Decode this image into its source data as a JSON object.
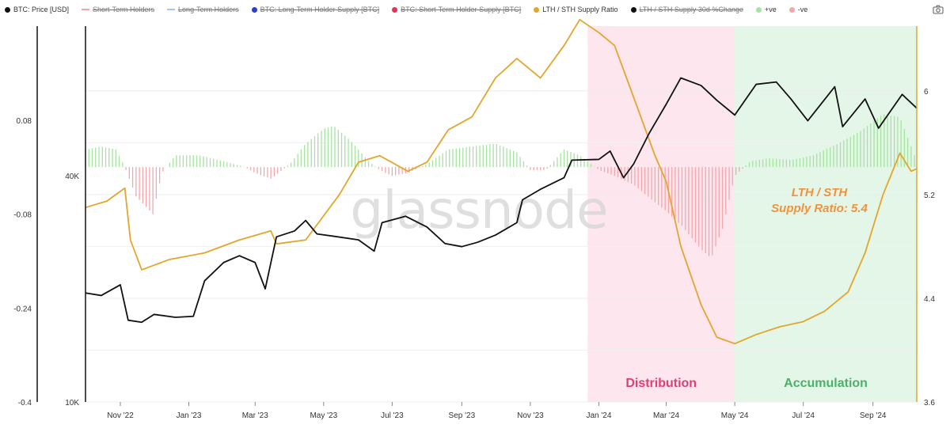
{
  "legend": [
    {
      "label": "BTC: Price [USD]",
      "color": "#111111",
      "shape": "dot",
      "disabled": false
    },
    {
      "label": "Short-Term Holders",
      "color": "#f4a3a8",
      "shape": "line",
      "disabled": true
    },
    {
      "label": "Long-Term Holders",
      "color": "#a8c4f0",
      "shape": "line",
      "disabled": true
    },
    {
      "label": "BTC: Long-Term Holder Supply [BTC]",
      "color": "#2a3fcf",
      "shape": "dot",
      "disabled": true
    },
    {
      "label": "BTC: Short-Term Holder Supply [BTC]",
      "color": "#e0335a",
      "shape": "dot",
      "disabled": true
    },
    {
      "label": "LTH / STH Supply Ratio",
      "color": "#e3a62c",
      "shape": "dot",
      "disabled": false
    },
    {
      "label": "LTH / STH Supply 30d %Change",
      "color": "#111111",
      "shape": "dot",
      "disabled": true
    },
    {
      "label": "+ve",
      "color": "#a6e3a1",
      "shape": "dot",
      "disabled": false
    },
    {
      "label": "-ve",
      "color": "#f3a6ac",
      "shape": "dot",
      "disabled": false
    }
  ],
  "icons": {
    "screenshot": "camera-icon"
  },
  "watermark": "glassnode",
  "annotation": {
    "line1": "LTH / STH",
    "line2": "Supply Ratio: 5.4"
  },
  "regions": [
    {
      "label": "Distribution",
      "start": "Dec 22 2023",
      "end": "May 1 2024",
      "fill": "#fde6ee",
      "text_color": "#e23e74"
    },
    {
      "label": "Accumulation",
      "start": "May 1 2024",
      "end": "Oct 10 2024",
      "fill": "#e4f6e8",
      "text_color": "#4cb06a"
    }
  ],
  "chart_data": {
    "type": "line",
    "x_range": [
      "Oct 1 2022",
      "Oct 10 2024"
    ],
    "x_ticks": [
      "Nov '22",
      "Jan '23",
      "Mar '23",
      "May '23",
      "Jul '23",
      "Sep '23",
      "Nov '23",
      "Jan '24",
      "Mar '24",
      "May '24",
      "Jul '24",
      "Sep '24"
    ],
    "axes": {
      "change_axis": {
        "side": "left-outer",
        "ticks": [
          "0.08",
          "-0.08",
          "-0.24",
          "-0.4"
        ],
        "range": [
          -0.4,
          0.24
        ]
      },
      "price_axis": {
        "side": "left-inner",
        "scale": "log",
        "ticks": [
          "40K",
          "10K"
        ],
        "range": [
          10000,
          100000
        ]
      },
      "ratio_axis": {
        "side": "right",
        "ticks": [
          "6",
          "5.2",
          "4.4",
          "3.6"
        ],
        "range": [
          3.6,
          6.5
        ]
      }
    },
    "series": [
      {
        "name": "BTC: Price [USD]",
        "color": "#111111",
        "axis": "price_axis",
        "points": [
          [
            "Oct 1 2022",
            19500
          ],
          [
            "Oct 15 2022",
            19200
          ],
          [
            "Nov 1 2022",
            20500
          ],
          [
            "Nov 8 2022",
            16500
          ],
          [
            "Nov 20 2022",
            16300
          ],
          [
            "Dec 1 2022",
            17100
          ],
          [
            "Dec 20 2022",
            16800
          ],
          [
            "Jan 5 2023",
            16900
          ],
          [
            "Jan 15 2023",
            21000
          ],
          [
            "Feb 1 2023",
            23500
          ],
          [
            "Feb 15 2023",
            24500
          ],
          [
            "Mar 1 2023",
            23500
          ],
          [
            "Mar 10 2023",
            20000
          ],
          [
            "Mar 20 2023",
            27500
          ],
          [
            "Apr 5 2023",
            28500
          ],
          [
            "Apr 15 2023",
            30400
          ],
          [
            "Apr 25 2023",
            28000
          ],
          [
            "May 10 2023",
            27600
          ],
          [
            "Jun 1 2023",
            27000
          ],
          [
            "Jun 15 2023",
            25200
          ],
          [
            "Jun 22 2023",
            30000
          ],
          [
            "Jul 13 2023",
            31200
          ],
          [
            "Aug 1 2023",
            29200
          ],
          [
            "Aug 17 2023",
            26400
          ],
          [
            "Sep 1 2023",
            25900
          ],
          [
            "Sep 15 2023",
            26600
          ],
          [
            "Oct 1 2023",
            27800
          ],
          [
            "Oct 20 2023",
            30000
          ],
          [
            "Oct 25 2023",
            34500
          ],
          [
            "Nov 10 2023",
            36800
          ],
          [
            "Dec 1 2023",
            39500
          ],
          [
            "Dec 8 2023",
            44000
          ],
          [
            "Jan 1 2024",
            44200
          ],
          [
            "Jan 11 2024",
            46500
          ],
          [
            "Jan 23 2024",
            39500
          ],
          [
            "Feb 1 2024",
            43000
          ],
          [
            "Feb 15 2024",
            52000
          ],
          [
            "Mar 1 2024",
            62000
          ],
          [
            "Mar 14 2024",
            72800
          ],
          [
            "Apr 1 2024",
            69500
          ],
          [
            "Apr 15 2024",
            63500
          ],
          [
            "May 1 2024",
            58000
          ],
          [
            "May 20 2024",
            70000
          ],
          [
            "Jun 7 2024",
            71000
          ],
          [
            "Jun 20 2024",
            64000
          ],
          [
            "Jul 5 2024",
            56000
          ],
          [
            "Jul 29 2024",
            69000
          ],
          [
            "Aug 5 2024",
            54000
          ],
          [
            "Aug 25 2024",
            64000
          ],
          [
            "Sep 6 2024",
            53500
          ],
          [
            "Sep 27 2024",
            65800
          ],
          [
            "Oct 10 2024",
            60500
          ]
        ]
      },
      {
        "name": "LTH / STH Supply Ratio",
        "color": "#e3a62c",
        "axis": "ratio_axis",
        "points": [
          [
            "Oct 1 2022",
            5.1
          ],
          [
            "Oct 20 2022",
            5.15
          ],
          [
            "Nov 5 2022",
            5.25
          ],
          [
            "Nov 10 2022",
            4.85
          ],
          [
            "Nov 20 2022",
            4.62
          ],
          [
            "Dec 15 2022",
            4.7
          ],
          [
            "Jan 15 2023",
            4.75
          ],
          [
            "Feb 15 2023",
            4.85
          ],
          [
            "Mar 15 2023",
            4.92
          ],
          [
            "Mar 20 2023",
            4.82
          ],
          [
            "Apr 15 2023",
            4.85
          ],
          [
            "May 15 2023",
            5.2
          ],
          [
            "Jun 1 2023",
            5.45
          ],
          [
            "Jun 20 2023",
            5.5
          ],
          [
            "Jul 15 2023",
            5.38
          ],
          [
            "Aug 1 2023",
            5.45
          ],
          [
            "Aug 20 2023",
            5.7
          ],
          [
            "Sep 10 2023",
            5.8
          ],
          [
            "Oct 1 2023",
            6.1
          ],
          [
            "Oct 20 2023",
            6.25
          ],
          [
            "Nov 10 2023",
            6.1
          ],
          [
            "Dec 1 2023",
            6.35
          ],
          [
            "Dec 15 2023",
            6.55
          ],
          [
            "Jan 1 2024",
            6.45
          ],
          [
            "Jan 15 2024",
            6.35
          ],
          [
            "Feb 1 2024",
            5.95
          ],
          [
            "Feb 20 2024",
            5.5
          ],
          [
            "Mar 1 2024",
            5.3
          ],
          [
            "Mar 14 2024",
            4.8
          ],
          [
            "Apr 1 2024",
            4.35
          ],
          [
            "Apr 15 2024",
            4.1
          ],
          [
            "May 1 2024",
            4.05
          ],
          [
            "May 20 2024",
            4.12
          ],
          [
            "Jun 10 2024",
            4.18
          ],
          [
            "Jul 1 2024",
            4.22
          ],
          [
            "Jul 20 2024",
            4.3
          ],
          [
            "Aug 10 2024",
            4.45
          ],
          [
            "Aug 25 2024",
            4.75
          ],
          [
            "Sep 10 2024",
            5.2
          ],
          [
            "Sep 25 2024",
            5.52
          ],
          [
            "Oct 5 2024",
            5.38
          ],
          [
            "Oct 10 2024",
            5.4
          ]
        ]
      },
      {
        "name": "LTH / STH Supply 30d %Change",
        "color_positive": "#a6e3a1",
        "color_negative": "#f3a6ac",
        "axis": "change_axis",
        "bar_points": [
          [
            "Oct 1 2022",
            0.03
          ],
          [
            "Oct 15 2022",
            0.035
          ],
          [
            "Oct 28 2022",
            0.03
          ],
          [
            "Nov 5 2022",
            0.0
          ],
          [
            "Nov 15 2022",
            -0.05
          ],
          [
            "Nov 30 2022",
            -0.08
          ],
          [
            "Dec 8 2022",
            -0.01
          ],
          [
            "Dec 20 2022",
            0.02
          ],
          [
            "Jan 10 2023",
            0.02
          ],
          [
            "Feb 1 2023",
            0.01
          ],
          [
            "Feb 20 2023",
            0.0
          ],
          [
            "Mar 1 2023",
            -0.01
          ],
          [
            "Mar 15 2023",
            -0.02
          ],
          [
            "Apr 1 2023",
            0.005
          ],
          [
            "Apr 15 2023",
            0.04
          ],
          [
            "May 1 2023",
            0.065
          ],
          [
            "May 10 2023",
            0.07
          ],
          [
            "May 25 2023",
            0.045
          ],
          [
            "Jun 10 2023",
            0.01
          ],
          [
            "Jun 20 2023",
            -0.005
          ],
          [
            "Jul 1 2023",
            -0.015
          ],
          [
            "Jul 15 2023",
            -0.01
          ],
          [
            "Aug 1 2023",
            0.005
          ],
          [
            "Aug 20 2023",
            0.03
          ],
          [
            "Sep 10 2023",
            0.035
          ],
          [
            "Oct 1 2023",
            0.04
          ],
          [
            "Oct 20 2023",
            0.025
          ],
          [
            "Nov 1 2023",
            -0.005
          ],
          [
            "Nov 15 2023",
            -0.005
          ],
          [
            "Dec 1 2023",
            0.03
          ],
          [
            "Dec 15 2023",
            0.02
          ],
          [
            "Jan 1 2024",
            -0.005
          ],
          [
            "Jan 15 2024",
            -0.015
          ],
          [
            "Feb 1 2024",
            -0.03
          ],
          [
            "Feb 20 2024",
            -0.06
          ],
          [
            "Mar 1 2024",
            -0.075
          ],
          [
            "Mar 15 2024",
            -0.1
          ],
          [
            "Apr 1 2024",
            -0.14
          ],
          [
            "Apr 10 2024",
            -0.155
          ],
          [
            "Apr 20 2024",
            -0.105
          ],
          [
            "May 1 2024",
            -0.015
          ],
          [
            "May 15 2024",
            0.01
          ],
          [
            "Jun 1 2024",
            0.015
          ],
          [
            "Jun 20 2024",
            0.012
          ],
          [
            "Jul 10 2024",
            0.02
          ],
          [
            "Aug 1 2024",
            0.04
          ],
          [
            "Aug 20 2024",
            0.06
          ],
          [
            "Sep 10 2024",
            0.09
          ],
          [
            "Sep 25 2024",
            0.085
          ],
          [
            "Oct 5 2024",
            0.035
          ],
          [
            "Oct 10 2024",
            0.01
          ]
        ]
      }
    ],
    "grid": true,
    "legend_position": "top"
  }
}
